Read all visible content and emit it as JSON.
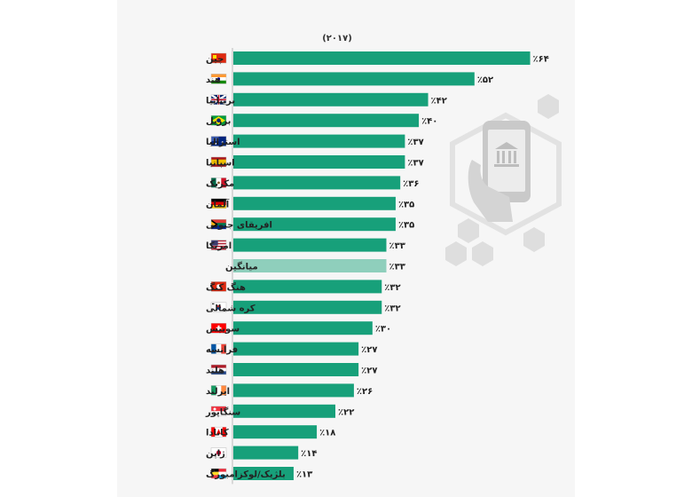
{
  "chart_data": {
    "type": "bar",
    "orientation": "horizontal",
    "subtitle": "(۲۰۱۷)",
    "value_prefix": "٪",
    "categories": [
      "چین",
      "هند",
      "بریتانیا",
      "برزیل",
      "استرالیا",
      "اسپانیا",
      "مکزیک",
      "آلمان",
      "افریقای جنوبی",
      "امریکا",
      "میانگین",
      "هنگ کنگ",
      "کره شمالی",
      "سوییس",
      "فرانسه",
      "هلند",
      "ایرلند",
      "سنگاپور",
      "کانادا",
      "ژاپن",
      "بلژیک/لوکزامبورگ"
    ],
    "values": [
      64,
      52,
      42,
      40,
      37,
      37,
      36,
      35,
      35,
      33,
      33,
      32,
      32,
      30,
      27,
      27,
      26,
      22,
      18,
      14,
      13
    ],
    "value_labels": [
      "۶۴",
      "۵۲",
      "۴۲",
      "۴۰",
      "۳۷",
      "۳۷",
      "۳۶",
      "۳۵",
      "۳۵",
      "۳۳",
      "۳۳",
      "۳۲",
      "۳۲",
      "۳۰",
      "۲۷",
      "۲۷",
      "۲۶",
      "۲۲",
      "۱۸",
      "۱۴",
      "۱۳"
    ],
    "flags": [
      "china",
      "india",
      "uk",
      "brazil",
      "australia",
      "spain",
      "mexico",
      "germany",
      "south-africa",
      "usa",
      "",
      "hong-kong",
      "south-korea",
      "switzerland",
      "france",
      "netherlands",
      "ireland",
      "singapore",
      "canada",
      "japan",
      "belgium-luxembourg"
    ],
    "highlight_category": "میانگین",
    "colors": {
      "bar": "#17a07a",
      "average_bar": "#8fcfbc",
      "axis": "#bbbbbb"
    },
    "xlim": [
      0,
      66
    ],
    "grid": false,
    "legend": "none"
  },
  "decoration": {
    "icon": "mobile-banking-hand-icon"
  }
}
